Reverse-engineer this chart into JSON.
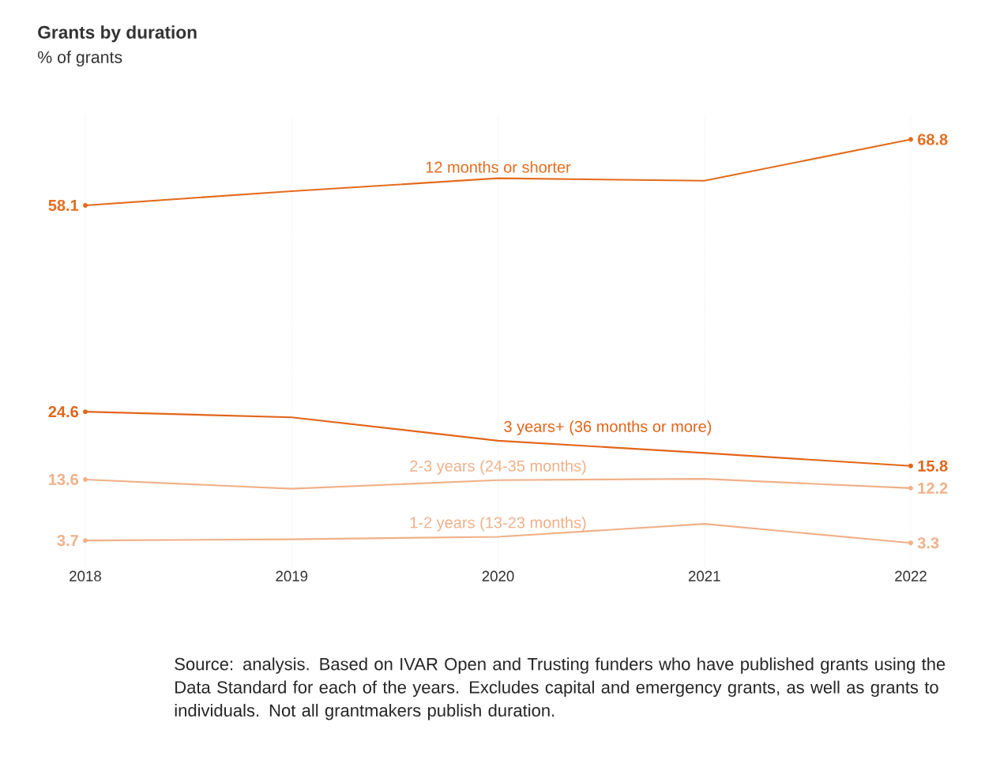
{
  "chart_data": {
    "type": "line",
    "title": "Grants by duration",
    "subtitle": "% of grants",
    "categories": [
      "2018",
      "2019",
      "2020",
      "2021",
      "2022"
    ],
    "grid": "x",
    "tick_labels": "x",
    "line_style": "solid",
    "annotations": [
      "Source:  analysis. Based on IVAR Open and Trusting funders who have published grants using the Data Standard for each of the years. Excludes capital and emergency grants, as well as grants to individuals. Not all grantmakers publish duration."
    ],
    "series": [
      {
        "name": "12 months or shorter",
        "color": "#e46c1e",
        "values": [
          58.1,
          60.4,
          62.5,
          62.1,
          68.8
        ],
        "value_labels": [
          "58.1",
          null,
          null,
          null,
          "68.8"
        ]
      },
      {
        "name": "3 years+ (36 months or more)",
        "color": "#e2651a",
        "values": [
          24.6,
          23.7,
          19.9,
          17.9,
          15.8
        ],
        "value_labels": [
          "24.6",
          null,
          null,
          null,
          "15.8"
        ]
      },
      {
        "name": "2-3 years (24-35 months)",
        "color": "#f0b088",
        "values": [
          13.6,
          12.1,
          13.5,
          13.7,
          12.2
        ],
        "value_labels": [
          "13.6",
          null,
          null,
          null,
          "12.2"
        ]
      },
      {
        "name": "1-2 years (13-23 months)",
        "color": "#f0b088",
        "values": [
          3.7,
          3.9,
          4.3,
          6.4,
          3.3
        ],
        "value_labels": [
          "3.7",
          null,
          null,
          null,
          "3.3"
        ]
      }
    ]
  }
}
